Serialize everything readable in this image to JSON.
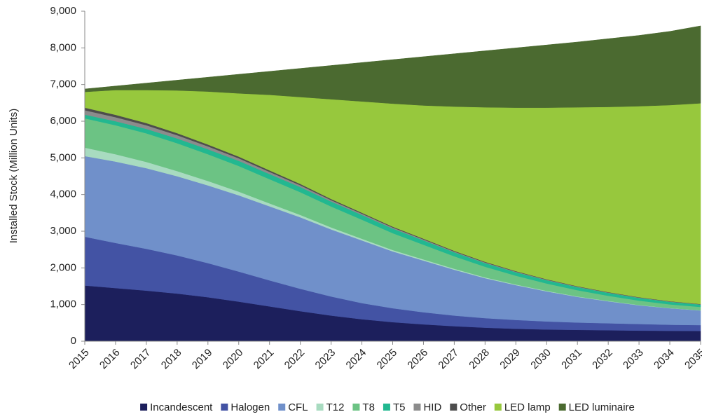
{
  "chart_data": {
    "type": "stacked_area",
    "y_axis_label": "Installed Stock (Million Units)",
    "categories": [
      "2015",
      "2016",
      "2017",
      "2018",
      "2019",
      "2020",
      "2021",
      "2022",
      "2023",
      "2024",
      "2025",
      "2026",
      "2027",
      "2028",
      "2029",
      "2030",
      "2031",
      "2032",
      "2033",
      "2034",
      "2035"
    ],
    "ylim": [
      0,
      9000
    ],
    "yticks": [
      0,
      {
        "value": 1000,
        "label": "1,000"
      },
      {
        "value": 2000,
        "label": "2,000"
      },
      {
        "value": 3000,
        "label": "3,000"
      },
      {
        "value": 4000,
        "label": "4,000"
      },
      {
        "value": 5000,
        "label": "5,000"
      },
      {
        "value": 6000,
        "label": "6,000"
      },
      {
        "value": 7000,
        "label": "7,000"
      },
      {
        "value": 8000,
        "label": "8,000"
      },
      {
        "value": 9000,
        "label": "9,000"
      }
    ],
    "legend": "bottom",
    "series": [
      {
        "name": "Incandescent",
        "color": "#1c1f5c",
        "values": [
          1520,
          1450,
          1380,
          1300,
          1200,
          1080,
          950,
          820,
          700,
          600,
          520,
          460,
          410,
          370,
          340,
          320,
          310,
          300,
          290,
          285,
          280
        ]
      },
      {
        "name": "Halogen",
        "color": "#4353a4",
        "values": [
          1330,
          1230,
          1140,
          1040,
          930,
          820,
          710,
          610,
          520,
          440,
          380,
          330,
          290,
          260,
          240,
          220,
          200,
          190,
          180,
          165,
          160
        ]
      },
      {
        "name": "CFL",
        "color": "#7090ca",
        "values": [
          2200,
          2220,
          2200,
          2160,
          2120,
          2080,
          2020,
          1950,
          1830,
          1710,
          1550,
          1410,
          1250,
          1090,
          950,
          820,
          700,
          600,
          510,
          450,
          400
        ]
      },
      {
        "name": "T12",
        "color": "#a8dbc0",
        "values": [
          230,
          200,
          170,
          140,
          120,
          100,
          80,
          65,
          55,
          45,
          38,
          32,
          27,
          22,
          18,
          15,
          12,
          10,
          8,
          6,
          5
        ]
      },
      {
        "name": "T8",
        "color": "#6cc384",
        "values": [
          800,
          790,
          780,
          760,
          730,
          700,
          660,
          620,
          570,
          520,
          460,
          400,
          340,
          290,
          240,
          200,
          170,
          140,
          120,
          100,
          90
        ]
      },
      {
        "name": "T5",
        "color": "#22b890",
        "values": [
          100,
          110,
          120,
          130,
          135,
          140,
          140,
          140,
          135,
          130,
          125,
          120,
          110,
          100,
          95,
          90,
          85,
          80,
          75,
          70,
          65
        ]
      },
      {
        "name": "HID",
        "color": "#8c8c8c",
        "values": [
          120,
          110,
          100,
          90,
          80,
          70,
          60,
          50,
          40,
          35,
          30,
          25,
          20,
          18,
          15,
          13,
          12,
          10,
          9,
          8,
          7
        ]
      },
      {
        "name": "Other",
        "color": "#4d4d4d",
        "values": [
          70,
          65,
          60,
          55,
          50,
          45,
          40,
          35,
          30,
          25,
          22,
          20,
          18,
          16,
          14,
          12,
          11,
          10,
          9,
          8,
          7
        ]
      },
      {
        "name": "LED lamp",
        "color": "#97c83d",
        "values": [
          430,
          675,
          900,
          1165,
          1445,
          1725,
          2060,
          2370,
          2720,
          3035,
          3355,
          3633,
          3935,
          4214,
          4458,
          4680,
          4880,
          5050,
          5209,
          5348,
          5476
        ]
      },
      {
        "name": "LED luminaire",
        "color": "#4b6a30",
        "values": [
          80,
          110,
          190,
          280,
          390,
          520,
          640,
          780,
          920,
          1060,
          1200,
          1330,
          1440,
          1540,
          1630,
          1710,
          1780,
          1860,
          1930,
          2010,
          2110
        ]
      }
    ]
  }
}
